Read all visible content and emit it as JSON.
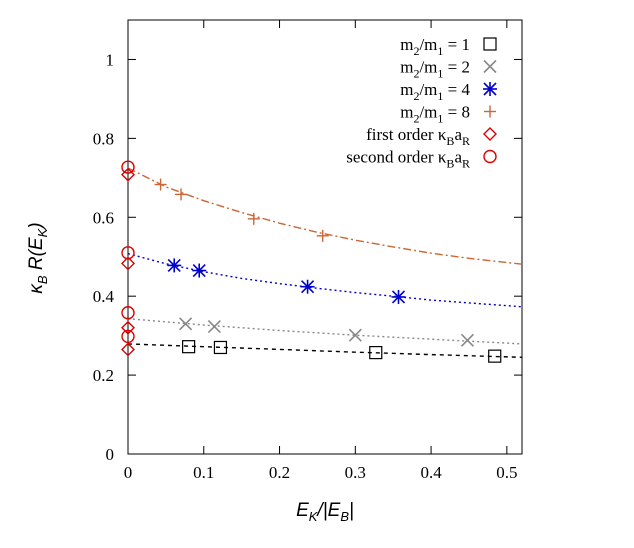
{
  "chart_data": {
    "type": "scatter",
    "xlabel": "E_K/|E_B|",
    "ylabel": "κ_B R(E_K)",
    "xlim": [
      0,
      0.52
    ],
    "ylim": [
      0,
      1.1
    ],
    "xticks": [
      0,
      0.1,
      0.2,
      0.3,
      0.4,
      0.5
    ],
    "yticks": [
      0,
      0.2,
      0.4,
      0.6,
      0.8,
      1
    ],
    "xtick_labels": [
      "0",
      "0.1",
      "0.2",
      "0.3",
      "0.4",
      "0.5"
    ],
    "ytick_labels": [
      "0",
      "0.2",
      "0.4",
      "0.6",
      "0.8",
      "1"
    ],
    "legend_position": "top-right",
    "series": [
      {
        "name": "m2/m1 = 1",
        "marker": "open-square",
        "color": "#000000",
        "x": [
          0.08,
          0.122,
          0.327,
          0.484
        ],
        "y": [
          0.272,
          0.27,
          0.257,
          0.248
        ],
        "fit": {
          "x": [
            0,
            0.1,
            0.2,
            0.3,
            0.4,
            0.52
          ],
          "y": [
            0.279,
            0.272,
            0.265,
            0.258,
            0.252,
            0.245
          ],
          "style": "dashed",
          "color": "#000000"
        }
      },
      {
        "name": "m2/m1 = 2",
        "marker": "cross",
        "color": "#888888",
        "x": [
          0.076,
          0.114,
          0.3,
          0.448
        ],
        "y": [
          0.33,
          0.323,
          0.301,
          0.288
        ],
        "fit": {
          "x": [
            0,
            0.1,
            0.2,
            0.3,
            0.4,
            0.52
          ],
          "y": [
            0.343,
            0.327,
            0.313,
            0.301,
            0.291,
            0.279
          ],
          "style": "dotted",
          "color": "#888888"
        }
      },
      {
        "name": "m2/m1 = 4",
        "marker": "asterisk",
        "color": "#0000cc",
        "x": [
          0.061,
          0.094,
          0.237,
          0.357
        ],
        "y": [
          0.478,
          0.465,
          0.424,
          0.398
        ],
        "fit": {
          "x": [
            0,
            0.05,
            0.1,
            0.15,
            0.2,
            0.25,
            0.3,
            0.35,
            0.4,
            0.45,
            0.52
          ],
          "y": [
            0.508,
            0.482,
            0.462,
            0.445,
            0.432,
            0.42,
            0.409,
            0.4,
            0.39,
            0.383,
            0.373
          ],
          "style": "dotted",
          "color": "#0000cc"
        }
      },
      {
        "name": "m2/m1 = 8",
        "marker": "plus",
        "color": "#cc6633",
        "x": [
          0.043,
          0.07,
          0.166,
          0.257
        ],
        "y": [
          0.683,
          0.658,
          0.596,
          0.553
        ],
        "fit": {
          "x": [
            0,
            0.05,
            0.1,
            0.15,
            0.2,
            0.25,
            0.3,
            0.35,
            0.4,
            0.45,
            0.52
          ],
          "y": [
            0.725,
            0.677,
            0.642,
            0.612,
            0.585,
            0.562,
            0.542,
            0.525,
            0.509,
            0.496,
            0.481
          ],
          "style": "dash-dot",
          "color": "#cc6633"
        }
      },
      {
        "name": "first order κBaR",
        "marker": "open-diamond",
        "color": "#dd0000",
        "x": [
          0,
          0,
          0,
          0
        ],
        "y": [
          0.708,
          0.483,
          0.32,
          0.265
        ]
      },
      {
        "name": "second order κBaR",
        "marker": "open-circle",
        "color": "#dd0000",
        "x": [
          0,
          0,
          0,
          0
        ],
        "y": [
          0.727,
          0.51,
          0.358,
          0.298
        ]
      }
    ]
  }
}
